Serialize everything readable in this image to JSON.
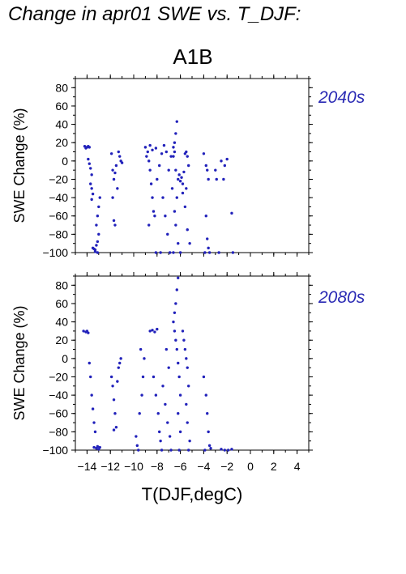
{
  "figure": {
    "title": "Change in apr01 SWE vs. T_DJF:",
    "scenario": "A1B"
  },
  "colors": {
    "points": "#2222bb",
    "panel_label": "#2a2ab4",
    "axes": "#000000"
  },
  "chart_data": [
    {
      "type": "scatter",
      "panel_label": "2040s",
      "xlabel": "T(DJF,degC)",
      "ylabel": "SWE Change (%)",
      "xlim": [
        -15,
        5
      ],
      "ylim": [
        -100,
        90
      ],
      "xticks": [
        -14,
        -12,
        -10,
        -8,
        -6,
        -4,
        -2,
        0,
        2,
        4
      ],
      "yticks": [
        -100,
        -80,
        -60,
        -40,
        -20,
        0,
        20,
        40,
        60,
        80
      ],
      "points": [
        [
          -14.2,
          16
        ],
        [
          -14.0,
          15
        ],
        [
          -13.9,
          16
        ],
        [
          -13.8,
          15
        ],
        [
          -14.1,
          14
        ],
        [
          -13.9,
          2
        ],
        [
          -13.8,
          -3
        ],
        [
          -13.7,
          -8
        ],
        [
          -13.6,
          -15
        ],
        [
          -13.7,
          -25
        ],
        [
          -13.6,
          -30
        ],
        [
          -13.5,
          -36
        ],
        [
          -13.6,
          -42
        ],
        [
          -13.5,
          -95
        ],
        [
          -13.3,
          -97
        ],
        [
          -13.2,
          -92
        ],
        [
          -13.1,
          -88
        ],
        [
          -13.0,
          -80
        ],
        [
          -13.2,
          -70
        ],
        [
          -13.1,
          -60
        ],
        [
          -13.0,
          -50
        ],
        [
          -12.9,
          -40
        ],
        [
          -13.3,
          -99
        ],
        [
          -13.1,
          -100
        ],
        [
          -13.4,
          -96
        ],
        [
          -11.9,
          8
        ],
        [
          -11.8,
          -10
        ],
        [
          -11.7,
          -20
        ],
        [
          -11.6,
          -13
        ],
        [
          -11.5,
          -5
        ],
        [
          -11.8,
          -40
        ],
        [
          -11.7,
          -65
        ],
        [
          -11.6,
          -70
        ],
        [
          -11.3,
          10
        ],
        [
          -11.2,
          5
        ],
        [
          -11.1,
          0
        ],
        [
          -11.0,
          -2
        ],
        [
          -11.4,
          -30
        ],
        [
          -9.0,
          15
        ],
        [
          -8.8,
          10
        ],
        [
          -8.7,
          0
        ],
        [
          -8.6,
          -10
        ],
        [
          -8.5,
          -25
        ],
        [
          -8.4,
          -40
        ],
        [
          -8.3,
          -55
        ],
        [
          -8.2,
          -60
        ],
        [
          -8.6,
          17
        ],
        [
          -8.4,
          12
        ],
        [
          -8.9,
          5
        ],
        [
          -8.1,
          14
        ],
        [
          -8.7,
          -70
        ],
        [
          -8.0,
          -20
        ],
        [
          -7.8,
          -5
        ],
        [
          -7.6,
          8
        ],
        [
          -7.4,
          17
        ],
        [
          -7.2,
          10
        ],
        [
          -7.0,
          -10
        ],
        [
          -6.8,
          5
        ],
        [
          -6.7,
          -30
        ],
        [
          -7.5,
          -40
        ],
        [
          -7.3,
          -60
        ],
        [
          -7.1,
          -80
        ],
        [
          -6.9,
          -100
        ],
        [
          -7.7,
          -100
        ],
        [
          -8.1,
          -100
        ],
        [
          -6.6,
          15
        ],
        [
          -6.5,
          20
        ],
        [
          -6.4,
          30
        ],
        [
          -6.3,
          43
        ],
        [
          -6.5,
          10
        ],
        [
          -6.6,
          5
        ],
        [
          -6.4,
          -10
        ],
        [
          -6.2,
          -20
        ],
        [
          -6.3,
          -40
        ],
        [
          -6.5,
          -55
        ],
        [
          -6.4,
          -70
        ],
        [
          -6.2,
          -90
        ],
        [
          -6.6,
          -100
        ],
        [
          -6.0,
          -100
        ],
        [
          -6.1,
          -15
        ],
        [
          -6.0,
          -22
        ],
        [
          -5.9,
          -18
        ],
        [
          -5.8,
          -25
        ],
        [
          -5.7,
          -12
        ],
        [
          -5.6,
          8
        ],
        [
          -5.5,
          10
        ],
        [
          -5.4,
          5
        ],
        [
          -5.3,
          -5
        ],
        [
          -5.5,
          -30
        ],
        [
          -5.6,
          -50
        ],
        [
          -5.4,
          -75
        ],
        [
          -5.2,
          -90
        ],
        [
          -5.8,
          -35
        ],
        [
          -4.0,
          8
        ],
        [
          -3.8,
          -5
        ],
        [
          -3.7,
          -10
        ],
        [
          -3.6,
          -20
        ],
        [
          -3.8,
          -60
        ],
        [
          -3.7,
          -85
        ],
        [
          -3.6,
          -95
        ],
        [
          -3.9,
          -100
        ],
        [
          -3.5,
          -100
        ],
        [
          -3.0,
          -10
        ],
        [
          -2.9,
          -20
        ],
        [
          -2.7,
          -100
        ],
        [
          -2.5,
          0
        ],
        [
          -2.3,
          -20
        ],
        [
          -2.2,
          -5
        ],
        [
          -2.0,
          2
        ],
        [
          -1.6,
          -57
        ],
        [
          -1.5,
          -100
        ]
      ]
    },
    {
      "type": "scatter",
      "panel_label": "2080s",
      "xlabel": "T(DJF,degC)",
      "ylabel": "SWE Change (%)",
      "xlim": [
        -15,
        5
      ],
      "ylim": [
        -100,
        90
      ],
      "xticks": [
        -14,
        -12,
        -10,
        -8,
        -6,
        -4,
        -2,
        0,
        2,
        4
      ],
      "yticks": [
        -100,
        -80,
        -60,
        -40,
        -20,
        0,
        20,
        40,
        60,
        80
      ],
      "points": [
        [
          -14.3,
          30
        ],
        [
          -14.1,
          29
        ],
        [
          -14.0,
          30
        ],
        [
          -13.9,
          28
        ],
        [
          -13.8,
          -5
        ],
        [
          -13.7,
          -20
        ],
        [
          -13.6,
          -40
        ],
        [
          -13.5,
          -55
        ],
        [
          -13.4,
          -70
        ],
        [
          -13.3,
          -80
        ],
        [
          -13.4,
          -97
        ],
        [
          -13.2,
          -98
        ],
        [
          -13.1,
          -96
        ],
        [
          -13.0,
          -99
        ],
        [
          -12.9,
          -97
        ],
        [
          -11.9,
          -20
        ],
        [
          -11.8,
          -30
        ],
        [
          -11.7,
          -45
        ],
        [
          -11.6,
          -60
        ],
        [
          -11.5,
          -75
        ],
        [
          -11.7,
          -78
        ],
        [
          -11.4,
          -25
        ],
        [
          -11.3,
          -10
        ],
        [
          -11.2,
          -5
        ],
        [
          -11.1,
          0
        ],
        [
          -9.8,
          -85
        ],
        [
          -9.7,
          -95
        ],
        [
          -9.6,
          -100
        ],
        [
          -9.5,
          -60
        ],
        [
          -9.3,
          -40
        ],
        [
          -9.2,
          -20
        ],
        [
          -9.1,
          0
        ],
        [
          -9.4,
          10
        ],
        [
          -8.6,
          30
        ],
        [
          -8.4,
          31
        ],
        [
          -8.2,
          29
        ],
        [
          -8.0,
          32
        ],
        [
          -8.3,
          -20
        ],
        [
          -8.1,
          -40
        ],
        [
          -7.9,
          -60
        ],
        [
          -7.8,
          -80
        ],
        [
          -7.7,
          -90
        ],
        [
          -7.5,
          -30
        ],
        [
          -7.3,
          -50
        ],
        [
          -7.1,
          -70
        ],
        [
          -6.9,
          -85
        ],
        [
          -7.2,
          10
        ],
        [
          -7.0,
          -10
        ],
        [
          -6.8,
          -100
        ],
        [
          -7.6,
          -100
        ],
        [
          -6.6,
          40
        ],
        [
          -6.5,
          50
        ],
        [
          -6.4,
          60
        ],
        [
          -6.3,
          75
        ],
        [
          -6.2,
          88
        ],
        [
          -6.5,
          30
        ],
        [
          -6.4,
          20
        ],
        [
          -6.3,
          10
        ],
        [
          -6.2,
          -5
        ],
        [
          -6.1,
          -20
        ],
        [
          -6.0,
          -40
        ],
        [
          -6.2,
          -60
        ],
        [
          -6.0,
          -80
        ],
        [
          -6.1,
          -100
        ],
        [
          -5.8,
          30
        ],
        [
          -5.7,
          20
        ],
        [
          -5.6,
          10
        ],
        [
          -5.5,
          0
        ],
        [
          -5.4,
          -10
        ],
        [
          -5.3,
          -30
        ],
        [
          -5.5,
          -50
        ],
        [
          -5.4,
          -70
        ],
        [
          -5.2,
          -90
        ],
        [
          -5.3,
          -100
        ],
        [
          -4.0,
          -20
        ],
        [
          -3.8,
          -40
        ],
        [
          -3.7,
          -60
        ],
        [
          -3.6,
          -80
        ],
        [
          -3.5,
          -95
        ],
        [
          -3.9,
          -100
        ],
        [
          -3.4,
          -98
        ],
        [
          -2.5,
          -99
        ],
        [
          -2.2,
          -100
        ],
        [
          -1.9,
          -100
        ],
        [
          -1.6,
          -99
        ]
      ]
    }
  ]
}
